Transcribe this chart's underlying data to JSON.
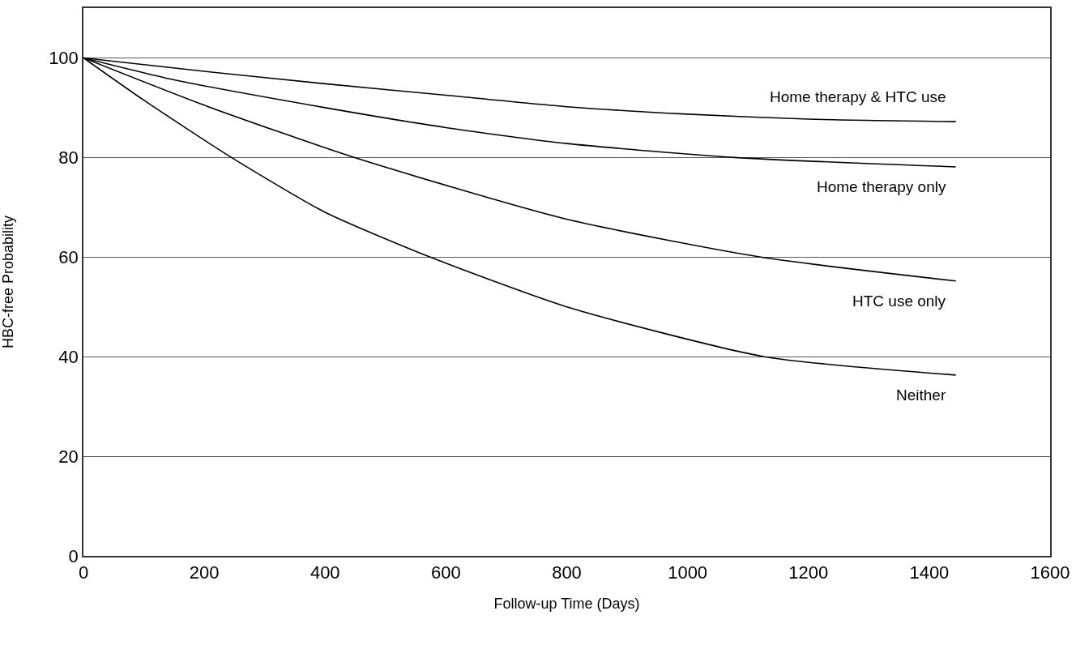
{
  "chart_data": {
    "type": "line",
    "xlabel": "Follow-up Time (Days)",
    "ylabel": "HBC-free Probability",
    "xlim": [
      0,
      1600
    ],
    "xticks": [
      0,
      200,
      400,
      600,
      800,
      1000,
      1200,
      1400,
      1600
    ],
    "ylim": [
      0,
      110
    ],
    "yticks": [
      0,
      20,
      40,
      60,
      80,
      100
    ],
    "grid": "y",
    "legend": false,
    "marker": "none",
    "line_style": "solid",
    "series": [
      {
        "name": "Home therapy & HTC use",
        "color": "#000000",
        "x": [
          0,
          200,
          400,
          600,
          800,
          1000,
          1200,
          1444
        ],
        "values": [
          100,
          97.3,
          94.8,
          92.5,
          90.2,
          88.7,
          87.7,
          87.2
        ]
      },
      {
        "name": "Home therapy only",
        "color": "#000000",
        "x": [
          0,
          150,
          400,
          600,
          800,
          1078,
          1444
        ],
        "values": [
          100,
          95.6,
          90,
          86,
          82.8,
          80,
          78.1
        ]
      },
      {
        "name": "HTC use only",
        "color": "#000000",
        "x": [
          0,
          200,
          448,
          800,
          1121,
          1444
        ],
        "values": [
          100,
          90.5,
          80,
          67.6,
          60,
          55.2
        ]
      },
      {
        "name": "Neither",
        "color": "#000000",
        "x": [
          0,
          100,
          245,
          400,
          574,
          800,
          1127,
          1444
        ],
        "values": [
          100,
          91.5,
          80,
          69,
          60,
          50,
          40,
          36.3
        ]
      }
    ]
  }
}
